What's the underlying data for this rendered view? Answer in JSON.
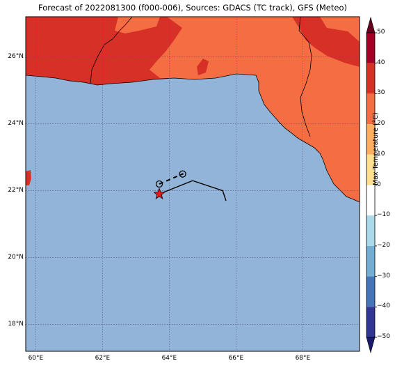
{
  "title": "Forecast of 2022081300 (f000-006), Sources: GDACS (TC track), GFS (Meteo)",
  "colors": {
    "sea": "#92b4d8",
    "land_hot": "#d73027",
    "land_warm": "#f46d43",
    "track": "#000000",
    "storm_marker": "#e41a1c",
    "grid": "#555577"
  },
  "map": {
    "lon_range": [
      59.7,
      69.7
    ],
    "lat_range": [
      17.2,
      27.2
    ],
    "lat_ticks": [
      "26°N",
      "24°N",
      "22°N",
      "20°N",
      "18°N"
    ],
    "lat_values": [
      26,
      24,
      22,
      20,
      18
    ],
    "lon_ticks": [
      "60°E",
      "62°E",
      "64°E",
      "66°E",
      "68°E"
    ],
    "lon_values": [
      60,
      62,
      64,
      66,
      68
    ],
    "grid": true,
    "current_position": {
      "lon": 63.7,
      "lat": 21.9,
      "icon": "star-icon"
    },
    "forecast_points": [
      {
        "lon": 63.7,
        "lat": 22.2,
        "icon": "circle-icon"
      },
      {
        "lon": 64.4,
        "lat": 22.5,
        "icon": "circle-dot-icon"
      }
    ],
    "past_track": [
      [
        63.7,
        21.9
      ],
      [
        64.7,
        22.3
      ],
      [
        65.6,
        22.0
      ],
      [
        65.7,
        21.7
      ]
    ]
  },
  "colorbar": {
    "label": "Max Temperature (°C)",
    "ticks": [
      "50",
      "40",
      "30",
      "20",
      "10",
      "0",
      "−10",
      "−20",
      "−30",
      "−40",
      "−50"
    ],
    "tick_values": [
      50,
      40,
      30,
      20,
      10,
      0,
      -10,
      -20,
      -30,
      -40,
      -50
    ],
    "bands": [
      {
        "from": 40,
        "to": 50,
        "color": "#a50026"
      },
      {
        "from": 30,
        "to": 40,
        "color": "#d73027"
      },
      {
        "from": 20,
        "to": 30,
        "color": "#f46d43"
      },
      {
        "from": 10,
        "to": 20,
        "color": "#fdae61"
      },
      {
        "from": 0,
        "to": 10,
        "color": "#fee090"
      },
      {
        "from": -10,
        "to": 0,
        "color": "#ffffff"
      },
      {
        "from": -20,
        "to": -10,
        "color": "#abd9e9"
      },
      {
        "from": -30,
        "to": -20,
        "color": "#74add1"
      },
      {
        "from": -40,
        "to": -30,
        "color": "#4575b4"
      },
      {
        "from": -50,
        "to": -40,
        "color": "#313695"
      }
    ],
    "extend_top": "#67001f",
    "extend_bottom": "#1a1a6e"
  }
}
